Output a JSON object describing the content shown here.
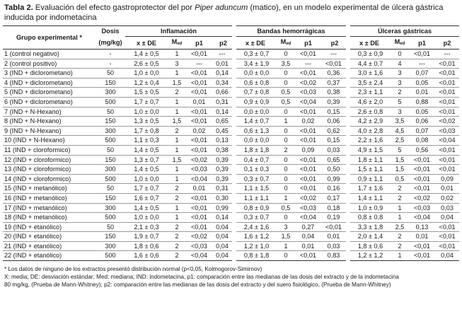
{
  "caption": {
    "label": "Tabla 2.",
    "text_before": " Evaluación del efecto gastroprotector del por ",
    "species": "Piper aduncum",
    "text_after": " (matico), en un modelo experimental de úlcera gástrica inducida por indometacina"
  },
  "header": {
    "group_col": "Grupo experimental *",
    "dose_col_line1": "Dosis",
    "dose_col_line2": "(mg/kg)",
    "groups": [
      "Inflamación",
      "Bandas hemorrágicas",
      "Úlceras gástricas"
    ],
    "sub": {
      "mean": "x ± DE",
      "med": "M",
      "med_sub": "ed",
      "p1": "p1",
      "p2": "p2"
    }
  },
  "rows": [
    {
      "g": "1 (control negativo)",
      "d": "-",
      "v": [
        "1,4 ± 0,5",
        "1",
        "<0,01",
        "---",
        "0,3 ± 0,7",
        "0",
        "<0,01",
        "---",
        "0,3 ± 0,9",
        "0",
        "<0,01",
        "---"
      ]
    },
    {
      "g": "2 (control positivo)",
      "d": "-",
      "v": [
        "2,6 ± 0,5",
        "3",
        "---",
        "0,01",
        "3,4 ± 1,9",
        "3,5",
        "---",
        "<0,01",
        "4,4 ± 0,7",
        "4",
        "---",
        "<0,01"
      ]
    },
    {
      "g": "3 (IND + diclorometano)",
      "d": "50",
      "v": [
        "1,0 ± 0,0",
        "1",
        "<0,01",
        "0,14",
        "0,0 ± 0,0",
        "0",
        "<0,01",
        "0,36",
        "3,0 ± 1,6",
        "3",
        "0,07",
        "<0,01"
      ]
    },
    {
      "g": "4 (IND + diclorometano)",
      "d": "150",
      "v": [
        "1,2 ± 0,4",
        "1,5",
        "<0,01",
        "0,34",
        "0,6 ± 0,8",
        "0",
        "<0,02",
        "0,37",
        "3,5 ± 2,4",
        "3",
        "0,05",
        "<0,01"
      ]
    },
    {
      "g": "5 (IND + diclorometano)",
      "d": "300",
      "v": [
        "1,5 ± 0,5",
        "2",
        "<0,01",
        "0,66",
        "0,7 ± 0,8",
        "0,5",
        "<0,03",
        "0,38",
        "2,3 ± 1,1",
        "2",
        "0,01",
        "<0,01"
      ]
    },
    {
      "g": "6 (IND + diclorometano)",
      "d": "500",
      "v": [
        "1,7 ± 0,7",
        "1",
        "0,01",
        "0,31",
        "0,9 ± 0,9",
        "0,5",
        "<0,04",
        "0,39",
        "4,6 ± 2,0",
        "5",
        "0,88",
        "<0,01"
      ]
    },
    {
      "g": "7 (IND + N-Hexano)",
      "d": "50",
      "v": [
        "1,0 ± 0,0",
        "1",
        "<0,01",
        "0,14",
        "0,0 ± 0,0",
        "0",
        "<0,01",
        "0,15",
        "2,6 ± 0,8",
        "3",
        "0,05",
        "<0,01"
      ]
    },
    {
      "g": "8 (IND + N-Hexano)",
      "d": "150",
      "v": [
        "1,3 ± 0,5",
        "1,5",
        "<0,01",
        "0,65",
        "1,4 ± 0,7",
        "1",
        "0,02",
        "0,06",
        "4,2 ± 2,9",
        "3,5",
        "0,06",
        "<0,02"
      ]
    },
    {
      "g": "9 (IND + N-Hexano)",
      "d": "300",
      "v": [
        "1,7 ± 0,8",
        "2",
        "0,02",
        "0,45",
        "0,6 ± 1,3",
        "0",
        "<0,01",
        "0,62",
        "4,0 ± 2,8",
        "4,5",
        "0,07",
        "<0,03"
      ]
    },
    {
      "g": "10 (IND + N-Hexano)",
      "d": "500",
      "v": [
        "1,1 ± 0,3",
        "1",
        "<0,01",
        "0,13",
        "0,0 ± 0,0",
        "0",
        "<0,01",
        "0,15",
        "2,2 ± 1,6",
        "2,5",
        "0,08",
        "<0,04"
      ]
    },
    {
      "g": "11 (IND + cloroformico)",
      "d": "50",
      "v": [
        "1,4 ± 0,5",
        "1",
        "<0,01",
        "0,38",
        "1,8 ± 1,8",
        "2",
        "0,09",
        "0,03",
        "4,9 ± 1,5",
        "5",
        "0,56",
        "<0,01"
      ]
    },
    {
      "g": "12 (IND + cloroformico)",
      "d": "150",
      "v": [
        "1,3 ± 0,7",
        "1,5",
        "<0,02",
        "0,39",
        "0,4 ± 0,7",
        "0",
        "<0,01",
        "0,65",
        "1,8 ± 1,1",
        "1,5",
        "<0,01",
        "<0,01"
      ]
    },
    {
      "g": "13 (IND + cloroformico)",
      "d": "300",
      "v": [
        "1,4 ± 0,5",
        "1",
        "<0,03",
        "0,39",
        "0,1 ± 0,3",
        "0",
        "<0,01",
        "0,50",
        "1,5 ± 1,1",
        "1,5",
        "<0,01",
        "<0,01"
      ]
    },
    {
      "g": "14 (IND + cloroformico)",
      "d": "500",
      "v": [
        "1,0 ± 0,0",
        "1",
        "<0,04",
        "0,39",
        "0,3 ± 0,7",
        "0",
        "<0,01",
        "0,99",
        "0,9 ± 1,1",
        "0,5",
        "<0,01",
        "0,09"
      ]
    },
    {
      "g": "15 (IND + metanólico)",
      "d": "50",
      "v": [
        "1,7 ± 0,7",
        "2",
        "0,01",
        "0,31",
        "1,1 ± 1,5",
        "0",
        "<0,01",
        "0,16",
        "1,7 ± 1,6",
        "2",
        "<0,01",
        "0,01"
      ]
    },
    {
      "g": "16 (IND + metanólico)",
      "d": "150",
      "v": [
        "1,6 ± 0,7",
        "2",
        "<0,01",
        "0,30",
        "1,1 ± 1,1",
        "1",
        "<0,02",
        "0,17",
        "1,4 ± 1,1",
        "2",
        "<0,02",
        "0,02"
      ]
    },
    {
      "g": "17 (IND + metanólico)",
      "d": "300",
      "v": [
        "1,4 ± 0,5",
        "1",
        "<0,01",
        "0,99",
        "0,8 ± 0,9",
        "0,5",
        "<0,03",
        "0,18",
        "1,0 ± 0,9",
        "1",
        "<0,03",
        "0,03"
      ]
    },
    {
      "g": "18 (IND + metanólico)",
      "d": "500",
      "v": [
        "1,0 ± 0,0",
        "1",
        "<0,01",
        "0,14",
        "0,3 ± 0,7",
        "0",
        "<0,04",
        "0,19",
        "0,8 ± 0,8",
        "1",
        "<0,04",
        "0,04"
      ]
    },
    {
      "g": "19 (IND + etanólico)",
      "d": "50",
      "v": [
        "2,1 ± 0,3",
        "2",
        "<0,01",
        "0,04",
        "2,4 ± 1,6",
        "3",
        "0,27",
        "<0,01",
        "3,3 ± 1,8",
        "2,5",
        "0,13",
        "<0,01"
      ]
    },
    {
      "g": "20 (IND + etanólico)",
      "d": "150",
      "v": [
        "1,9 ± 0,7",
        "2",
        "<0,02",
        "0,04",
        "1,6 ± 1,2",
        "1,5",
        "0,04",
        "0,01",
        "2,0 ± 1,4",
        "2",
        "0,01",
        "<0,01"
      ]
    },
    {
      "g": "21 (IND + etanólico)",
      "d": "300",
      "v": [
        "1,8 ± 0,6",
        "2",
        "<0,03",
        "0,04",
        "1,2 ± 1,0",
        "1",
        "0,01",
        "0,03",
        "1,8 ± 0,6",
        "2",
        "<0,01",
        "<0,01"
      ]
    },
    {
      "g": "22 (IND + etanólico)",
      "d": "500",
      "v": [
        "1,6 ± 0,6",
        "2",
        "<0,04",
        "0,04",
        "0,8 ± 1,8",
        "0",
        "<0,01",
        "0,83",
        "1,2 ± 1,2",
        "1",
        "<0,01",
        "0,04"
      ]
    }
  ],
  "notes": {
    "line1": "* Los datos de ninguno de los extractos presentó distribución normal (p<0,05, Kolmogorov-Simirnov)",
    "line2": "X: media; DE: desviación estándar; Med: mediana; IND: indometacina, p1: comparación entre las medianas de las dosis del extracto y de la indometacina",
    "line3": "80 mg/kg, (Prueba de Mann-Whitney); p2: comparación entre las medianas de las dosis del extracto y del suero fisiológico, (Prueba de Mann-Whitney)"
  }
}
